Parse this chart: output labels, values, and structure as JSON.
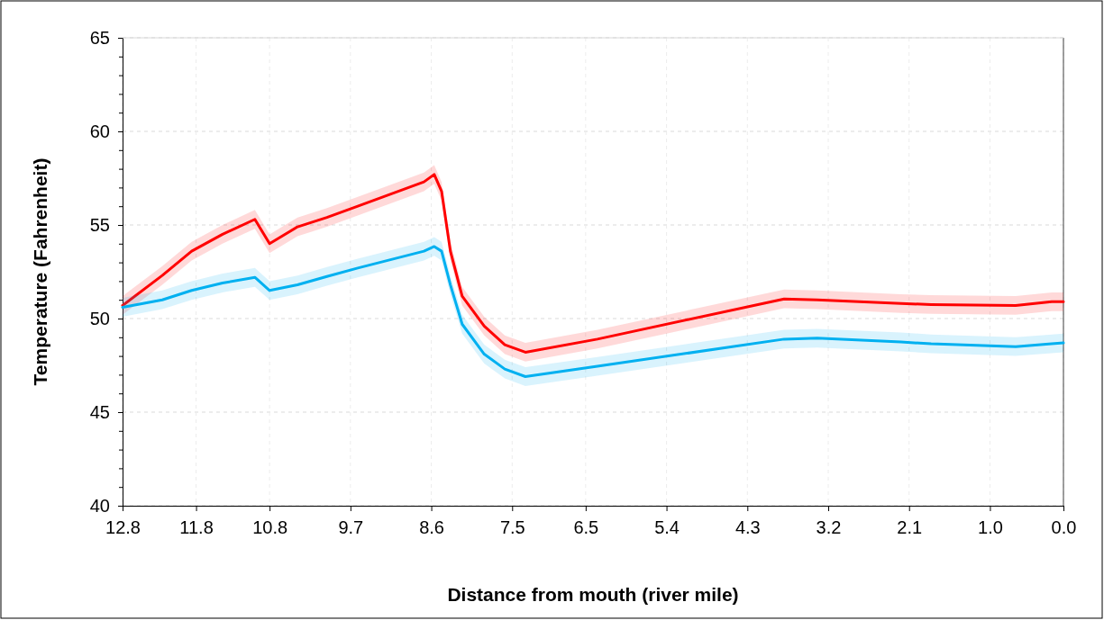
{
  "chart_data": {
    "type": "line",
    "xlabel": "Distance from mouth (river mile)",
    "ylabel": "Temperature (Fahrenheit)",
    "x": [
      12.8,
      12.26,
      11.86,
      11.44,
      11.0,
      10.8,
      10.42,
      10.02,
      9.6,
      8.7,
      8.56,
      8.46,
      8.34,
      8.18,
      7.88,
      7.6,
      7.32,
      6.34,
      3.8,
      3.35,
      2.21,
      1.8,
      0.65,
      0.16,
      0.0
    ],
    "series": [
      {
        "color": "#ff0000",
        "values": [
          50.7,
          52.3,
          53.6,
          54.5,
          55.3,
          54.0,
          54.9,
          55.4,
          56.0,
          57.3,
          57.7,
          56.8,
          53.6,
          51.2,
          49.6,
          48.6,
          48.2,
          48.9,
          51.05,
          51.0,
          50.8,
          50.75,
          50.7,
          50.9,
          50.9
        ],
        "lower": [
          50.2,
          51.8,
          53.1,
          54.0,
          54.8,
          53.5,
          54.4,
          54.9,
          55.5,
          56.8,
          57.2,
          56.3,
          53.1,
          50.7,
          49.1,
          48.1,
          47.7,
          48.4,
          50.55,
          50.5,
          50.3,
          50.25,
          50.2,
          50.4,
          50.4
        ],
        "upper": [
          51.2,
          52.8,
          54.1,
          55.0,
          55.8,
          54.5,
          55.4,
          55.9,
          56.5,
          57.8,
          58.2,
          57.3,
          54.1,
          51.7,
          50.1,
          49.1,
          48.7,
          49.4,
          51.55,
          51.5,
          51.3,
          51.25,
          51.2,
          51.4,
          51.4
        ]
      },
      {
        "color": "#00b0f0",
        "values": [
          50.6,
          51.0,
          51.5,
          51.9,
          52.2,
          51.5,
          51.8,
          52.25,
          52.7,
          53.6,
          53.85,
          53.6,
          51.8,
          49.7,
          48.1,
          47.3,
          46.9,
          47.45,
          48.9,
          48.95,
          48.75,
          48.65,
          48.5,
          48.65,
          48.7
        ],
        "lower": [
          50.1,
          50.5,
          51.0,
          51.4,
          51.7,
          51.0,
          51.3,
          51.75,
          52.2,
          53.1,
          53.35,
          53.1,
          51.3,
          49.2,
          47.6,
          46.8,
          46.4,
          46.95,
          48.4,
          48.45,
          48.25,
          48.15,
          48.0,
          48.15,
          48.2
        ],
        "upper": [
          51.1,
          51.5,
          52.0,
          52.4,
          52.7,
          52.0,
          52.3,
          52.75,
          53.2,
          54.1,
          54.35,
          54.1,
          52.3,
          50.2,
          48.6,
          47.8,
          47.4,
          47.95,
          49.4,
          49.45,
          49.25,
          49.15,
          49.0,
          49.15,
          49.2
        ]
      }
    ],
    "xlim": [
      12.8,
      0.0
    ],
    "xticks": [
      12.8,
      11.8,
      10.8,
      9.7,
      8.6,
      7.5,
      6.5,
      5.4,
      4.3,
      3.2,
      2.1,
      {
        "value": 1.0,
        "label": "1.0"
      },
      {
        "value": 0.0,
        "label": "0.0"
      }
    ],
    "ylim": [
      40,
      65
    ],
    "yticks": [
      40,
      {
        "value": 41,
        "label": null
      },
      {
        "value": 42,
        "label": null
      },
      {
        "value": 43,
        "label": null
      },
      {
        "value": 44,
        "label": null
      },
      45,
      {
        "value": 46,
        "label": null
      },
      {
        "value": 47,
        "label": null
      },
      {
        "value": 48,
        "label": null
      },
      {
        "value": 49,
        "label": null
      },
      50,
      {
        "value": 51,
        "label": null
      },
      {
        "value": 52,
        "label": null
      },
      {
        "value": 53,
        "label": null
      },
      {
        "value": 54,
        "label": null
      },
      55,
      {
        "value": 56,
        "label": null
      },
      {
        "value": 57,
        "label": null
      },
      {
        "value": 58,
        "label": null
      },
      {
        "value": 59,
        "label": null
      },
      60,
      {
        "value": 61,
        "label": null
      },
      {
        "value": 62,
        "label": null
      },
      {
        "value": 63,
        "label": null
      },
      {
        "value": 64,
        "label": null
      },
      65
    ],
    "grid": true,
    "marker": "none",
    "line_style": "solid"
  }
}
